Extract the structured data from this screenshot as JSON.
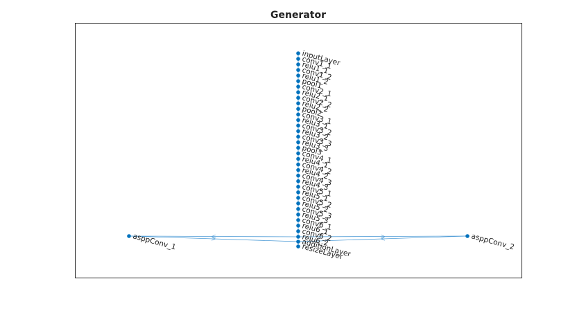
{
  "title": "Generator",
  "nodes": [
    {
      "label": "inputLayer"
    },
    {
      "label": "conv1_1"
    },
    {
      "label": "relu1_1"
    },
    {
      "label": "conv1_2"
    },
    {
      "label": "relu1_2"
    },
    {
      "label": "pool1"
    },
    {
      "label": "conv2_1"
    },
    {
      "label": "relu2_1"
    },
    {
      "label": "conv2_2"
    },
    {
      "label": "relu2_2"
    },
    {
      "label": "pool2"
    },
    {
      "label": "conv3_1"
    },
    {
      "label": "relu3_1"
    },
    {
      "label": "conv3_2"
    },
    {
      "label": "relu3_2"
    },
    {
      "label": "conv3_3"
    },
    {
      "label": "relu3_3"
    },
    {
      "label": "pool3"
    },
    {
      "label": "conv4_1"
    },
    {
      "label": "relu4_1"
    },
    {
      "label": "conv4_2"
    },
    {
      "label": "relu4_2"
    },
    {
      "label": "conv4_3"
    },
    {
      "label": "relu4_3"
    },
    {
      "label": "conv5_1"
    },
    {
      "label": "relu5_1"
    },
    {
      "label": "conv5_2"
    },
    {
      "label": "relu5_2"
    },
    {
      "label": "conv5_3"
    },
    {
      "label": "relu5_3"
    },
    {
      "label": "conv6_1"
    },
    {
      "label": "relu6_1"
    },
    {
      "label": "conv6_2"
    },
    {
      "label": "relu6_2"
    },
    {
      "label": "asppConv_1"
    },
    {
      "label": "asppConv_2"
    },
    {
      "label": "additionLayer"
    },
    {
      "label": "resizeLayer"
    }
  ]
}
